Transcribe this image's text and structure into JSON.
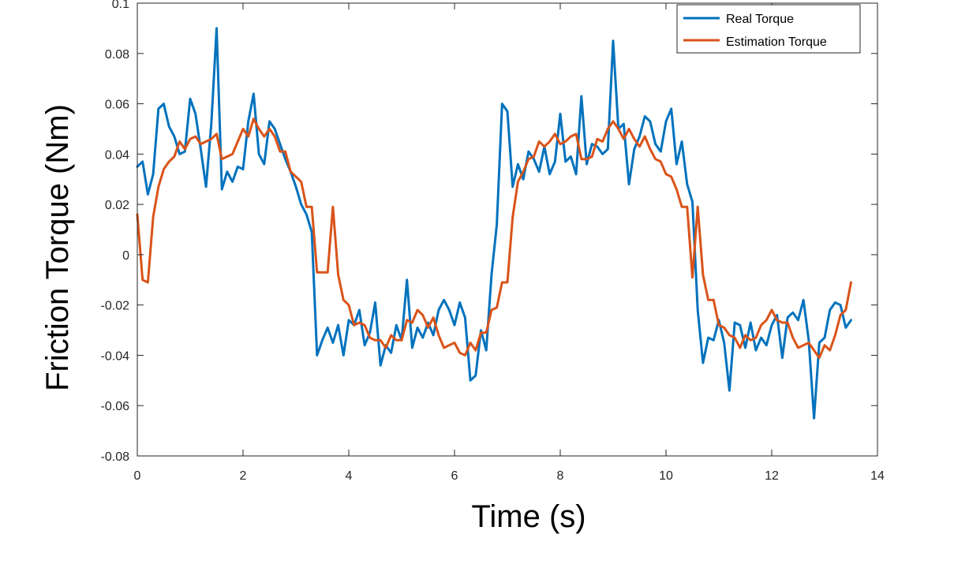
{
  "chart_data": {
    "type": "line",
    "title": "",
    "xlabel": "Time (s)",
    "ylabel": "Friction Torque (Nm)",
    "xlim": [
      0,
      14
    ],
    "ylim": [
      -0.08,
      0.1
    ],
    "xticks": [
      0,
      2,
      4,
      6,
      8,
      10,
      12,
      14
    ],
    "xtick_labels": [
      "0",
      "2",
      "4",
      "6",
      "8",
      "10",
      "12",
      "14"
    ],
    "yticks": [
      -0.08,
      -0.06,
      -0.04,
      -0.02,
      0,
      0.02,
      0.04,
      0.06,
      0.08,
      0.1
    ],
    "ytick_labels": [
      "-0.08",
      "-0.06",
      "-0.04",
      "-0.02",
      "0",
      "0.02",
      "0.04",
      "0.06",
      "0.08",
      "0.1"
    ],
    "grid": false,
    "legend_position": "top-right",
    "colors": {
      "real": "#0072BD",
      "estimation": "#D95319",
      "axis": "#262626"
    },
    "series": [
      {
        "name": "Real Torque",
        "color": "#0072BD",
        "x": [
          0,
          0.1,
          0.2,
          0.3,
          0.4,
          0.5,
          0.6,
          0.7,
          0.8,
          0.9,
          1.0,
          1.1,
          1.2,
          1.3,
          1.4,
          1.5,
          1.6,
          1.7,
          1.8,
          1.9,
          2.0,
          2.1,
          2.2,
          2.3,
          2.4,
          2.5,
          2.6,
          2.7,
          2.8,
          2.9,
          3.0,
          3.1,
          3.2,
          3.3,
          3.4,
          3.5,
          3.6,
          3.7,
          3.8,
          3.9,
          4.0,
          4.1,
          4.2,
          4.3,
          4.4,
          4.5,
          4.6,
          4.7,
          4.8,
          4.9,
          5.0,
          5.1,
          5.2,
          5.3,
          5.4,
          5.5,
          5.6,
          5.7,
          5.8,
          5.9,
          6.0,
          6.1,
          6.2,
          6.3,
          6.4,
          6.5,
          6.6,
          6.7,
          6.8,
          6.9,
          7.0,
          7.1,
          7.2,
          7.3,
          7.4,
          7.5,
          7.6,
          7.7,
          7.8,
          7.9,
          8.0,
          8.1,
          8.2,
          8.3,
          8.4,
          8.5,
          8.6,
          8.7,
          8.8,
          8.9,
          9.0,
          9.1,
          9.2,
          9.3,
          9.4,
          9.5,
          9.6,
          9.7,
          9.8,
          9.9,
          10.0,
          10.1,
          10.2,
          10.3,
          10.4,
          10.5,
          10.6,
          10.7,
          10.8,
          10.9,
          11.0,
          11.1,
          11.2,
          11.3,
          11.4,
          11.5,
          11.6,
          11.7,
          11.8,
          11.9,
          12.0,
          12.1,
          12.2,
          12.3,
          12.4,
          12.5,
          12.6,
          12.7,
          12.8,
          12.9,
          13.0,
          13.1,
          13.2,
          13.3,
          13.4,
          13.5
        ],
        "y": [
          0.035,
          0.037,
          0.024,
          0.032,
          0.058,
          0.06,
          0.051,
          0.047,
          0.04,
          0.041,
          0.062,
          0.056,
          0.042,
          0.027,
          0.052,
          0.09,
          0.026,
          0.033,
          0.029,
          0.035,
          0.034,
          0.053,
          0.064,
          0.04,
          0.036,
          0.053,
          0.05,
          0.044,
          0.038,
          0.033,
          0.027,
          0.02,
          0.016,
          0.009,
          -0.04,
          -0.034,
          -0.029,
          -0.035,
          -0.028,
          -0.04,
          -0.026,
          -0.028,
          -0.022,
          -0.036,
          -0.031,
          -0.019,
          -0.044,
          -0.036,
          -0.039,
          -0.028,
          -0.034,
          -0.01,
          -0.037,
          -0.029,
          -0.033,
          -0.027,
          -0.032,
          -0.022,
          -0.018,
          -0.022,
          -0.028,
          -0.019,
          -0.025,
          -0.05,
          -0.048,
          -0.03,
          -0.038,
          -0.008,
          0.012,
          0.06,
          0.057,
          0.027,
          0.036,
          0.03,
          0.041,
          0.038,
          0.033,
          0.043,
          0.032,
          0.037,
          0.056,
          0.037,
          0.039,
          0.032,
          0.063,
          0.036,
          0.044,
          0.043,
          0.04,
          0.042,
          0.085,
          0.05,
          0.052,
          0.028,
          0.042,
          0.047,
          0.055,
          0.053,
          0.044,
          0.041,
          0.053,
          0.058,
          0.036,
          0.045,
          0.028,
          0.021,
          -0.022,
          -0.043,
          -0.033,
          -0.034,
          -0.026,
          -0.035,
          -0.054,
          -0.027,
          -0.028,
          -0.037,
          -0.027,
          -0.038,
          -0.033,
          -0.036,
          -0.028,
          -0.024,
          -0.041,
          -0.025,
          -0.023,
          -0.026,
          -0.018,
          -0.034,
          -0.065,
          -0.035,
          -0.033,
          -0.022,
          -0.019,
          -0.02,
          -0.029,
          -0.026
        ]
      },
      {
        "name": "Estimation Torque",
        "color": "#D95319",
        "x": [
          0,
          0.1,
          0.2,
          0.3,
          0.4,
          0.5,
          0.6,
          0.7,
          0.8,
          0.9,
          1.0,
          1.1,
          1.2,
          1.3,
          1.4,
          1.5,
          1.6,
          1.7,
          1.8,
          1.9,
          2.0,
          2.1,
          2.2,
          2.3,
          2.4,
          2.5,
          2.6,
          2.7,
          2.8,
          2.9,
          3.0,
          3.1,
          3.2,
          3.3,
          3.4,
          3.5,
          3.6,
          3.7,
          3.8,
          3.9,
          4.0,
          4.1,
          4.2,
          4.3,
          4.4,
          4.5,
          4.6,
          4.7,
          4.8,
          4.9,
          5.0,
          5.1,
          5.2,
          5.3,
          5.4,
          5.5,
          5.6,
          5.7,
          5.8,
          5.9,
          6.0,
          6.1,
          6.2,
          6.3,
          6.4,
          6.5,
          6.6,
          6.7,
          6.8,
          6.9,
          7.0,
          7.1,
          7.2,
          7.3,
          7.4,
          7.5,
          7.6,
          7.7,
          7.8,
          7.9,
          8.0,
          8.1,
          8.2,
          8.3,
          8.4,
          8.5,
          8.6,
          8.7,
          8.8,
          8.9,
          9.0,
          9.1,
          9.2,
          9.3,
          9.4,
          9.5,
          9.6,
          9.7,
          9.8,
          9.9,
          10.0,
          10.1,
          10.2,
          10.3,
          10.4,
          10.5,
          10.6,
          10.7,
          10.8,
          10.9,
          11.0,
          11.1,
          11.2,
          11.3,
          11.4,
          11.5,
          11.6,
          11.7,
          11.8,
          11.9,
          12.0,
          12.1,
          12.2,
          12.3,
          12.4,
          12.5,
          12.6,
          12.7,
          12.8,
          12.9,
          13.0,
          13.1,
          13.2,
          13.3,
          13.4,
          13.5
        ],
        "y": [
          0.016,
          -0.01,
          -0.011,
          0.015,
          0.027,
          0.034,
          0.037,
          0.039,
          0.045,
          0.042,
          0.046,
          0.047,
          0.044,
          0.045,
          0.046,
          0.048,
          0.038,
          0.039,
          0.04,
          0.045,
          0.05,
          0.047,
          0.054,
          0.05,
          0.047,
          0.05,
          0.047,
          0.041,
          0.041,
          0.033,
          0.031,
          0.029,
          0.019,
          0.019,
          -0.007,
          -0.007,
          -0.007,
          0.019,
          -0.008,
          -0.018,
          -0.02,
          -0.028,
          -0.027,
          -0.028,
          -0.033,
          -0.034,
          -0.034,
          -0.037,
          -0.032,
          -0.034,
          -0.034,
          -0.026,
          -0.027,
          -0.022,
          -0.024,
          -0.029,
          -0.025,
          -0.032,
          -0.037,
          -0.036,
          -0.035,
          -0.039,
          -0.04,
          -0.035,
          -0.038,
          -0.031,
          -0.031,
          -0.022,
          -0.021,
          -0.011,
          -0.011,
          0.015,
          0.029,
          0.033,
          0.038,
          0.039,
          0.045,
          0.043,
          0.045,
          0.048,
          0.044,
          0.045,
          0.047,
          0.048,
          0.038,
          0.038,
          0.039,
          0.046,
          0.045,
          0.05,
          0.053,
          0.05,
          0.046,
          0.05,
          0.046,
          0.043,
          0.047,
          0.042,
          0.038,
          0.037,
          0.032,
          0.031,
          0.026,
          0.019,
          0.019,
          -0.009,
          0.019,
          -0.008,
          -0.018,
          -0.018,
          -0.028,
          -0.029,
          -0.032,
          -0.033,
          -0.037,
          -0.032,
          -0.034,
          -0.033,
          -0.028,
          -0.026,
          -0.022,
          -0.026,
          -0.027,
          -0.027,
          -0.033,
          -0.037,
          -0.036,
          -0.035,
          -0.038,
          -0.041,
          -0.036,
          -0.038,
          -0.032,
          -0.024,
          -0.022,
          -0.011
        ]
      }
    ]
  }
}
